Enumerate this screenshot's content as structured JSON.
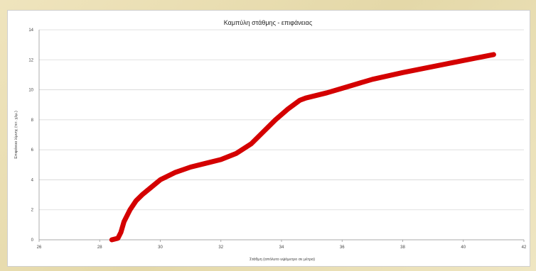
{
  "chart_data": {
    "type": "line",
    "title": "Καμπύλη στάθμης - επιφάνειας",
    "xlabel": "Στάθμη (απόλυτο υψόμετρο σε μέτρα)",
    "ylabel": "Επιφάνεια λίμνης (τετ. χλμ.)",
    "xlim": [
      26,
      42
    ],
    "ylim": [
      0,
      14
    ],
    "x_ticks": [
      "26",
      "28",
      "30",
      "32",
      "34",
      "36",
      "38",
      "40",
      "42"
    ],
    "y_ticks": [
      "0",
      "2",
      "4",
      "6",
      "8",
      "10",
      "12",
      "14"
    ],
    "grid": true,
    "series": [
      {
        "color": "#d40000",
        "x": [
          28.4,
          28.6,
          28.7,
          28.8,
          29.0,
          29.2,
          29.4,
          29.7,
          30.0,
          30.5,
          31.0,
          31.5,
          32.0,
          32.5,
          33.0,
          33.4,
          33.8,
          34.2,
          34.6,
          34.8,
          35.5,
          36.0,
          36.5,
          37.0,
          38.0,
          39.0,
          40.0,
          41.0
        ],
        "y": [
          0.0,
          0.1,
          0.5,
          1.2,
          2.0,
          2.6,
          3.0,
          3.5,
          4.0,
          4.5,
          4.85,
          5.1,
          5.35,
          5.75,
          6.4,
          7.2,
          8.0,
          8.7,
          9.3,
          9.45,
          9.8,
          10.1,
          10.4,
          10.7,
          11.15,
          11.55,
          11.95,
          12.35
        ]
      }
    ]
  }
}
